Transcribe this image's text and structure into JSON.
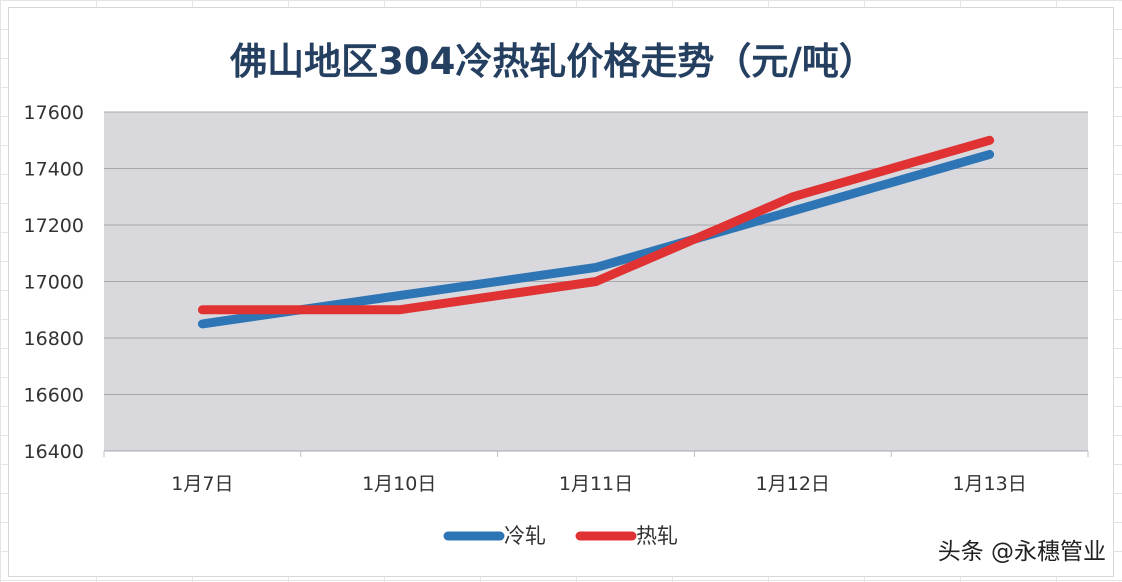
{
  "chart_data": {
    "type": "line",
    "title": "佛山地区304冷热轧价格走势（元/吨）",
    "categories": [
      "1月7日",
      "1月10日",
      "1月11日",
      "1月12日",
      "1月13日"
    ],
    "ylim": [
      16400,
      17600
    ],
    "yticks": [
      16400,
      16600,
      16800,
      17000,
      17200,
      17400,
      17600
    ],
    "ytick_labels": [
      "16400",
      "16600",
      "16800",
      "17000",
      "17200",
      "17400",
      "17600"
    ],
    "grid": true,
    "legend_position": "bottom",
    "plot_background": "#d9d9dd",
    "series": [
      {
        "name": "冷轧",
        "values": [
          16850,
          16950,
          17050,
          17250,
          17450
        ],
        "color": "#2e75b6"
      },
      {
        "name": "热轧",
        "values": [
          16900,
          16900,
          17000,
          17300,
          17500
        ],
        "color": "#e03232"
      }
    ]
  },
  "watermark": "头条 @永穗管业"
}
